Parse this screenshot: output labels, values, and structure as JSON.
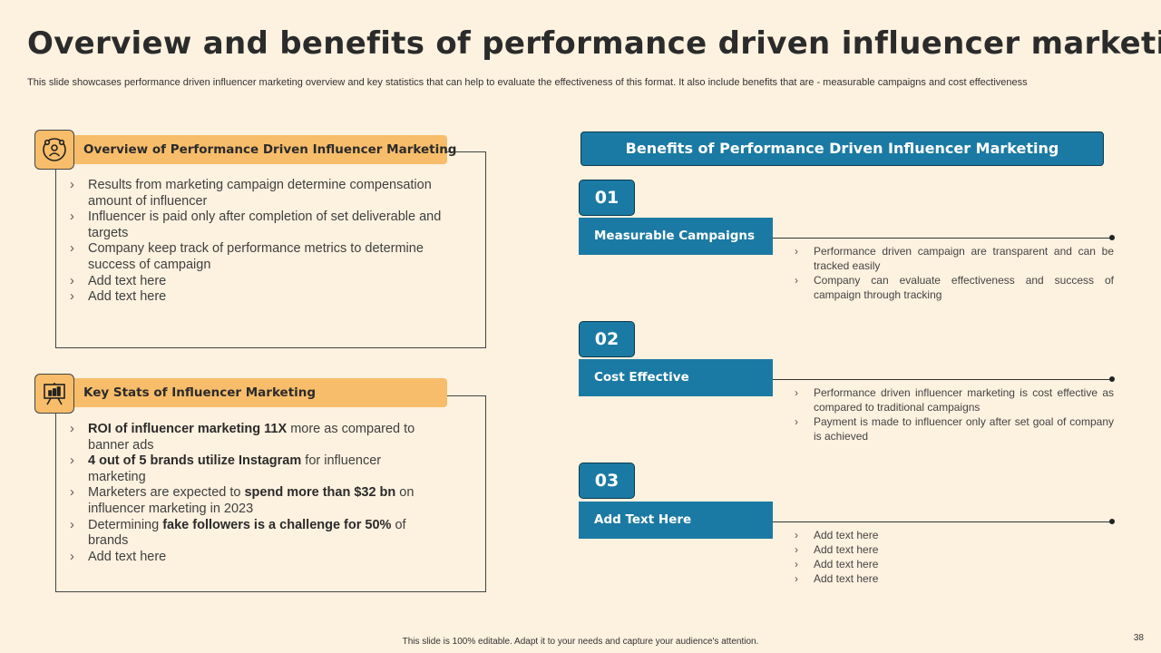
{
  "title": "Overview and benefits of performance driven influencer marketing",
  "subtitle": "This slide showcases performance driven influencer marketing overview and key statistics that can help to evaluate the effectiveness of this format. It also include benefits that are -  measurable campaigns and cost effectiveness",
  "overview": {
    "heading": "Overview of Performance Driven Influencer Marketing",
    "icon": "influencer-network-icon",
    "items": [
      "Results from marketing campaign determine compensation amount of influencer",
      "Influencer is paid only after completion of set deliverable and targets",
      "Company keep track of performance metrics to determine success of campaign",
      "Add text here",
      "Add text here"
    ]
  },
  "stats": {
    "heading": "Key Stats of Influencer Marketing",
    "icon": "presentation-board-icon",
    "items": [
      {
        "bold1": "ROI of influencer marketing 11X",
        "text1": " more as compared to banner ads"
      },
      {
        "bold1": "4 out of 5 brands utilize Instagram",
        "text1": " for influencer marketing"
      },
      {
        "pre": "Marketers are expected to ",
        "bold1": "spend more than $32 bn",
        "text1": " on influencer marketing in 2023"
      },
      {
        "pre": "Determining ",
        "bold1": "fake followers is a challenge for 50%",
        "text1": " of brands"
      },
      {
        "pre": "Add text here"
      }
    ]
  },
  "benefits": {
    "heading": "Benefits of Performance Driven Influencer Marketing",
    "items": [
      {
        "number": "01",
        "label": "Measurable Campaigns",
        "points": [
          "Performance driven campaign are transparent and can be tracked easily",
          "Company can evaluate effectiveness and success of campaign through tracking"
        ]
      },
      {
        "number": "02",
        "label": "Cost Effective",
        "points": [
          "Performance driven influencer marketing is cost effective as compared to traditional campaigns",
          "Payment is made to influencer only after set goal of company is achieved"
        ]
      },
      {
        "number": "03",
        "label": "Add Text Here",
        "points": [
          "Add text here",
          "Add text here",
          "Add text here",
          "Add text here"
        ]
      }
    ]
  },
  "footer": "This slide is 100% editable. Adapt it to your needs and capture your audience's attention.",
  "page_number": "38",
  "colors": {
    "background": "#fdf1df",
    "accent_orange": "#f8bd6a",
    "accent_blue": "#1b7aa3"
  }
}
